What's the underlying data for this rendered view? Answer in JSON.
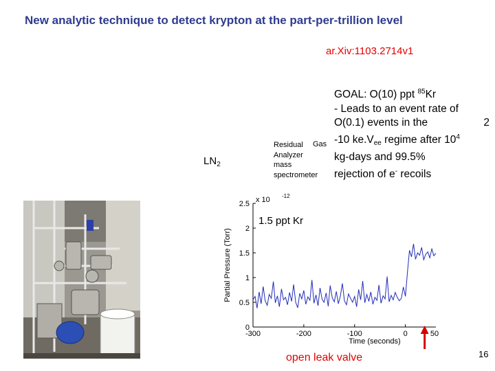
{
  "slide": {
    "title": "New analytic technique to detect krypton at the part-per-trillion level",
    "reference": "ar.Xiv:1103.2714v1",
    "page_number": "16"
  },
  "goal": {
    "l1_pre": "GOAL: O(10) ppt ",
    "l1_sup": "85",
    "l1_post": "Kr",
    "l2": "- Leads to an event rate of",
    "l3_pre": "O(0.1) events in the",
    "l3_num": "2",
    "l4_pre": "-10 ke.V",
    "l4_sub": "ee",
    "l4_mid": " regime after  10",
    "l4_sup": "4",
    "l5": "kg-days and 99.5%",
    "l6_pre": "rejection of e",
    "l6_sup": "-",
    "l6_post": " recoils"
  },
  "labels": {
    "ln2_main": "LN",
    "ln2_sub": "2",
    "gas": "Gas",
    "instrument": [
      "Residual",
      "Analyzer",
      "mass",
      "spectrometer"
    ],
    "open_leak_valve": "open leak valve"
  },
  "chart_data": {
    "type": "line",
    "xlabel": "Time (seconds)",
    "ylabel": "Partial Pressure (Torr)",
    "y_exponent": "x 10",
    "y_exponent_power": "-12",
    "annotation": "1.5 ppt Kr",
    "xlim": [
      -300,
      60
    ],
    "ylim": [
      0,
      2.5
    ],
    "x_ticks": [
      -300,
      -200,
      -100,
      0
    ],
    "x_tick_labels": [
      "-300",
      "-200",
      "-100",
      "0"
    ],
    "extra_x_tick_label": "50",
    "y_ticks": [
      0,
      0.5,
      1,
      1.5,
      2,
      2.5
    ],
    "y_tick_labels": [
      "0",
      "0.5",
      "1",
      "1.5",
      "2",
      "2.5"
    ],
    "series": [
      {
        "color": "#1f2ab8",
        "x": [
          -300,
          -296,
          -292,
          -288,
          -284,
          -280,
          -276,
          -272,
          -268,
          -264,
          -260,
          -256,
          -252,
          -248,
          -244,
          -240,
          -236,
          -232,
          -228,
          -224,
          -220,
          -216,
          -212,
          -208,
          -204,
          -200,
          -196,
          -192,
          -188,
          -184,
          -180,
          -176,
          -172,
          -168,
          -164,
          -160,
          -156,
          -152,
          -148,
          -144,
          -140,
          -136,
          -132,
          -128,
          -124,
          -120,
          -116,
          -112,
          -108,
          -104,
          -100,
          -96,
          -92,
          -88,
          -84,
          -80,
          -76,
          -72,
          -68,
          -64,
          -60,
          -56,
          -52,
          -48,
          -44,
          -40,
          -36,
          -32,
          -28,
          -24,
          -20,
          -16,
          -12,
          -8,
          -4,
          0,
          4,
          8,
          12,
          16,
          20,
          24,
          28,
          32,
          36,
          40,
          44,
          48,
          52,
          56,
          60
        ],
        "y": [
          0.55,
          0.62,
          0.38,
          0.71,
          0.47,
          0.82,
          0.53,
          0.44,
          0.66,
          0.58,
          0.92,
          0.49,
          0.63,
          0.41,
          0.77,
          0.55,
          0.6,
          0.45,
          0.7,
          0.52,
          0.86,
          0.5,
          0.39,
          0.68,
          0.57,
          0.74,
          0.46,
          0.61,
          0.54,
          0.95,
          0.48,
          0.65,
          0.43,
          0.79,
          0.56,
          0.5,
          0.69,
          0.42,
          0.84,
          0.59,
          0.51,
          0.72,
          0.47,
          0.63,
          0.88,
          0.53,
          0.45,
          0.67,
          0.58,
          0.5,
          0.62,
          0.41,
          0.76,
          0.55,
          0.93,
          0.49,
          0.66,
          0.52,
          0.71,
          0.46,
          0.6,
          0.54,
          0.85,
          0.48,
          0.63,
          0.57,
          1.02,
          0.51,
          0.64,
          0.55,
          0.7,
          0.6,
          0.53,
          0.58,
          0.81,
          0.62,
          1.1,
          1.55,
          1.42,
          1.68,
          1.37,
          1.5,
          1.45,
          1.61,
          1.36,
          1.47,
          1.52,
          1.4,
          1.58,
          1.44,
          1.49
        ]
      }
    ]
  }
}
